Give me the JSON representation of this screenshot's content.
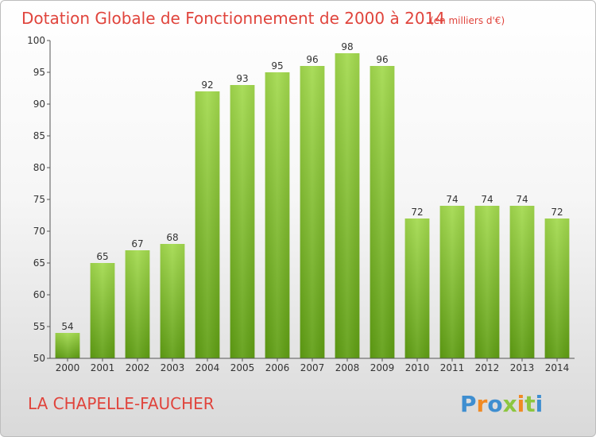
{
  "chart_data": {
    "type": "bar",
    "title": "Dotation Globale de Fonctionnement de 2000 à 2014",
    "subtitle": "(en milliers d'€)",
    "categories": [
      "2000",
      "2001",
      "2002",
      "2003",
      "2004",
      "2005",
      "2006",
      "2007",
      "2008",
      "2009",
      "2010",
      "2011",
      "2012",
      "2013",
      "2014"
    ],
    "values": [
      54,
      65,
      67,
      68,
      92,
      93,
      95,
      96,
      98,
      96,
      72,
      74,
      74,
      74,
      72
    ],
    "ylim": [
      50,
      100
    ],
    "yticks": [
      50,
      55,
      60,
      65,
      70,
      75,
      80,
      85,
      90,
      95,
      100
    ],
    "grid": false,
    "bar_color_top": "#a3da4e",
    "bar_color_bottom": "#5f9e13"
  },
  "commune": "LA CHAPELLE-FAUCHER",
  "logo": {
    "letters": [
      {
        "ch": "P",
        "color": "#3e8ed0"
      },
      {
        "ch": "r",
        "color": "#f08a24"
      },
      {
        "ch": "o",
        "color": "#3e8ed0"
      },
      {
        "ch": "x",
        "color": "#8cc63f"
      },
      {
        "ch": "i",
        "color": "#f08a24"
      },
      {
        "ch": "t",
        "color": "#8cc63f"
      },
      {
        "ch": "i",
        "color": "#3e8ed0"
      }
    ]
  }
}
